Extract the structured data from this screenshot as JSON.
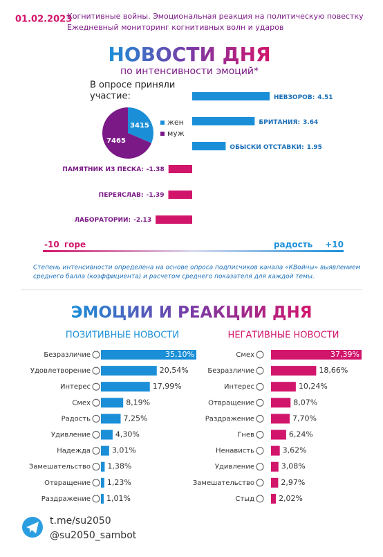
{
  "header": {
    "date": "01.02.2023",
    "lines": [
      "Когнитивные войны. Эмоциональная реакция на политическую повестку",
      "Ежедневный мониторинг когнитивных волн и ударов"
    ]
  },
  "title": "НОВОСТИ ДНЯ",
  "subtitle": "по интенсивности эмоций*",
  "scale": {
    "left_number": "-10",
    "left_text": "горе",
    "right_text": "радость",
    "right_number": "+10"
  },
  "footnote": [
    "Степень интенсивности определена на основе опроса подписчиков канала «КВойны» выявлением",
    "среднего балла (коэффициента) и расчетом среднего показателя для каждой темы."
  ],
  "section_title": "ЭМОЦИИ И РЕАКЦИИ ДНЯ",
  "footer": [
    "t.me/su2050",
    "@su2050_sambot"
  ],
  "chart_data": [
    {
      "type": "pie",
      "title_lines": [
        "В опросе приняли",
        "участие:"
      ],
      "categories": [
        "жен",
        "муж"
      ],
      "values": [
        3415,
        7465
      ],
      "colors": [
        "#1a8fd8",
        "#7b1a86"
      ]
    },
    {
      "type": "diverging",
      "categories": [
        "НЕВЗОРОВ:",
        "БРИТАНИЯ:",
        "ОБЫСКИ ОТСТАВКИ:",
        "ПАМЯТНИК ИЗ ПЕСКА:",
        "ПЕРЕЯСЛАВ:",
        "ЛАБОРАТОРИИ:"
      ],
      "values": [
        4.51,
        3.64,
        1.95,
        -1.38,
        -1.39,
        -2.13
      ],
      "positive_color": "#1a8fd8",
      "negative_color": "#d1156b"
    },
    {
      "type": "hbar",
      "title": "ПОЗИТИВНЫЕ НОВОСТИ",
      "color": "#1a8fd8",
      "categories": [
        "Безразличие",
        "Удовлетворение",
        "Интерес",
        "Смех",
        "Радость",
        "Удивление",
        "Надежда",
        "Замешательство",
        "Отвращение",
        "Раздражение"
      ],
      "values": [
        35.1,
        20.54,
        17.99,
        8.19,
        7.25,
        4.3,
        3.01,
        1.38,
        1.23,
        1.01
      ],
      "value_labels": [
        "35,10%",
        "20,54%",
        "17,99%",
        "8,19%",
        "7,25%",
        "4,30%",
        "3,01%",
        "1,38%",
        "1,23%",
        "1,01%"
      ]
    },
    {
      "type": "hbar",
      "title": "НЕГАТИВНЫЕ НОВОСТИ",
      "color": "#d1156b",
      "categories": [
        "Смех",
        "Безразличие",
        "Интерес",
        "Отвращение",
        "Раздражение",
        "Гнев",
        "Ненависть",
        "Удивление",
        "Замешательство",
        "Стыд"
      ],
      "values": [
        37.39,
        18.66,
        10.24,
        8.07,
        7.7,
        6.24,
        3.62,
        3.08,
        2.97,
        2.02
      ],
      "value_labels": [
        "37,39%",
        "18,66%",
        "10,24%",
        "8,07%",
        "7,70%",
        "6,24%",
        "3,62%",
        "3,08%",
        "2,97%",
        "2,02%"
      ]
    }
  ]
}
